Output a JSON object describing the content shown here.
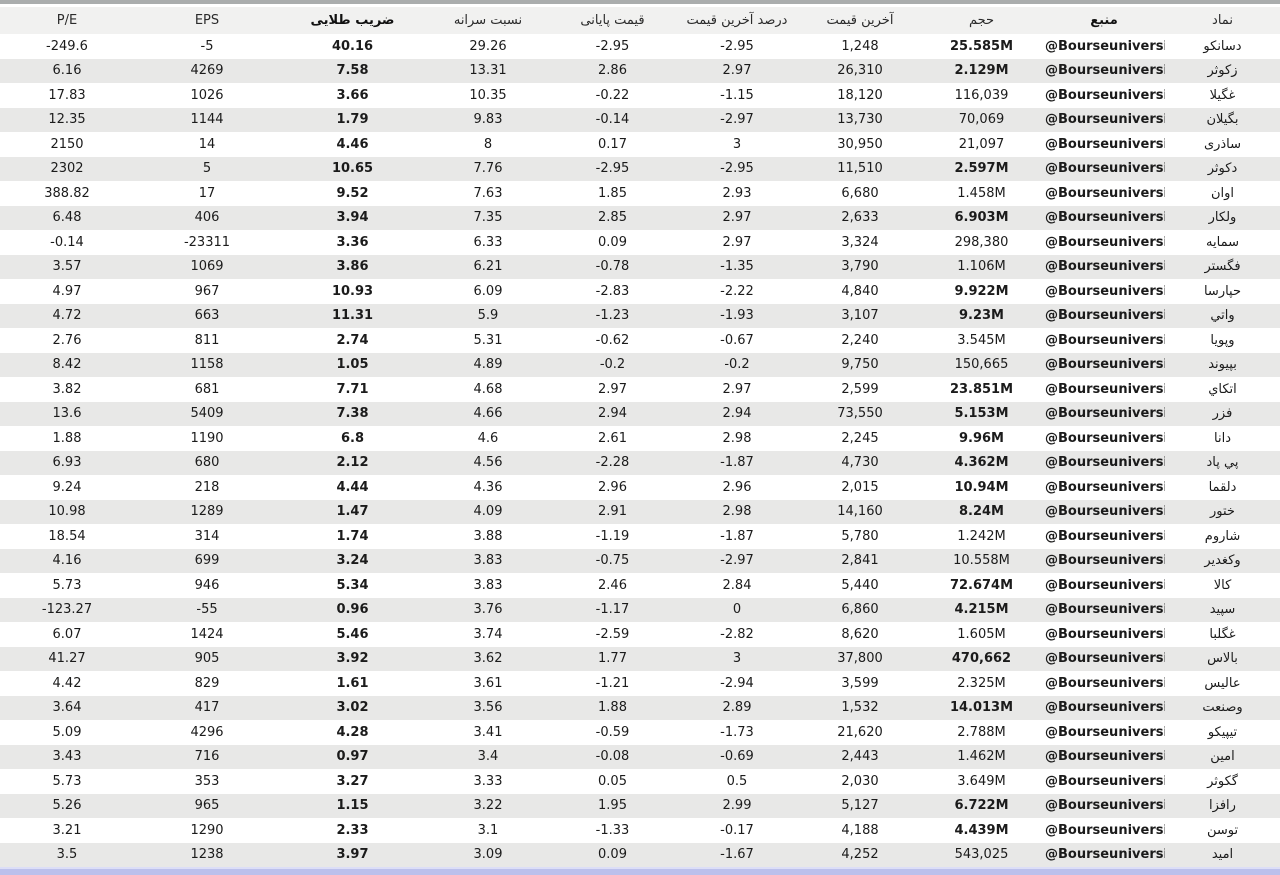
{
  "source_handle": "@Bourseuniversi",
  "colors": {
    "positive": "#339933",
    "negative": "#dc3b3b",
    "neutral": "#1b1b1b",
    "golden_ratio_text": "#15159a",
    "source_text": "#15159a",
    "header_bg": "#f1f1f0",
    "row_alt_bg": "#e8e8e7",
    "bottom_scrollbar": "#bcc0ec"
  },
  "table": {
    "columns": [
      {
        "key": "symbol",
        "label": "نماد",
        "style": "symbol",
        "bold_header": false
      },
      {
        "key": "source",
        "label": "منبع",
        "style": "source",
        "bold_header": true
      },
      {
        "key": "volume",
        "label": "حجم",
        "style": "volume",
        "bold_header": false
      },
      {
        "key": "last_price",
        "label": "آخرین قیمت",
        "style": "plain",
        "bold_header": false
      },
      {
        "key": "last_price_pct",
        "label": "درصد آخرین قیمت",
        "style": "signed",
        "bold_header": false
      },
      {
        "key": "close_price_pct",
        "label": "قیمت پایانی",
        "style": "signed",
        "bold_header": false
      },
      {
        "key": "per_capita_ratio",
        "label": "نسبت سرانه",
        "style": "plain",
        "bold_header": false
      },
      {
        "key": "golden_ratio",
        "label": "ضریب طلایی",
        "style": "golden",
        "bold_header": true
      },
      {
        "key": "eps",
        "label": "EPS",
        "style": "plain",
        "bold_header": false
      },
      {
        "key": "pe",
        "label": "P/E",
        "style": "plain",
        "bold_header": false
      }
    ],
    "rows": [
      {
        "symbol": "دسانکو",
        "source": "@Bourseuniversi",
        "volume": "25.585M",
        "volume_bold": true,
        "last_price": "1,248",
        "last_price_pct": "-2.95",
        "close_price_pct": "-2.95",
        "per_capita_ratio": "29.26",
        "golden_ratio": "40.16",
        "eps": "-5",
        "pe": "-249.6"
      },
      {
        "symbol": "زکوثر",
        "source": "@Bourseuniversi",
        "volume": "2.129M",
        "volume_bold": true,
        "last_price": "26,310",
        "last_price_pct": "2.97",
        "close_price_pct": "2.86",
        "per_capita_ratio": "13.31",
        "golden_ratio": "7.58",
        "eps": "4269",
        "pe": "6.16"
      },
      {
        "symbol": "غگیلا",
        "source": "@Bourseuniversi",
        "volume": "116,039",
        "volume_bold": false,
        "last_price": "18,120",
        "last_price_pct": "-1.15",
        "close_price_pct": "-0.22",
        "per_capita_ratio": "10.35",
        "golden_ratio": "3.66",
        "eps": "1026",
        "pe": "17.83"
      },
      {
        "symbol": "بگیلان",
        "source": "@Bourseuniversi",
        "volume": "70,069",
        "volume_bold": false,
        "last_price": "13,730",
        "last_price_pct": "-2.97",
        "close_price_pct": "-0.14",
        "per_capita_ratio": "9.83",
        "golden_ratio": "1.79",
        "eps": "1144",
        "pe": "12.35"
      },
      {
        "symbol": "ساذری",
        "source": "@Bourseuniversi",
        "volume": "21,097",
        "volume_bold": false,
        "last_price": "30,950",
        "last_price_pct": "3",
        "close_price_pct": "0.17",
        "per_capita_ratio": "8",
        "golden_ratio": "4.46",
        "eps": "14",
        "pe": "2150"
      },
      {
        "symbol": "دکوثر",
        "source": "@Bourseuniversi",
        "volume": "2.597M",
        "volume_bold": true,
        "last_price": "11,510",
        "last_price_pct": "-2.95",
        "close_price_pct": "-2.95",
        "per_capita_ratio": "7.76",
        "golden_ratio": "10.65",
        "eps": "5",
        "pe": "2302"
      },
      {
        "symbol": "اوان",
        "source": "@Bourseuniversi",
        "volume": "1.458M",
        "volume_bold": false,
        "last_price": "6,680",
        "last_price_pct": "2.93",
        "close_price_pct": "1.85",
        "per_capita_ratio": "7.63",
        "golden_ratio": "9.52",
        "eps": "17",
        "pe": "388.82"
      },
      {
        "symbol": "ولکار",
        "source": "@Bourseuniversi",
        "volume": "6.903M",
        "volume_bold": true,
        "last_price": "2,633",
        "last_price_pct": "2.97",
        "close_price_pct": "2.85",
        "per_capita_ratio": "7.35",
        "golden_ratio": "3.94",
        "eps": "406",
        "pe": "6.48"
      },
      {
        "symbol": "سمایه",
        "source": "@Bourseuniversi",
        "volume": "298,380",
        "volume_bold": false,
        "last_price": "3,324",
        "last_price_pct": "2.97",
        "close_price_pct": "0.09",
        "per_capita_ratio": "6.33",
        "golden_ratio": "3.36",
        "eps": "-23311",
        "pe": "-0.14"
      },
      {
        "symbol": "فگستر",
        "source": "@Bourseuniversi",
        "volume": "1.106M",
        "volume_bold": false,
        "last_price": "3,790",
        "last_price_pct": "-1.35",
        "close_price_pct": "-0.78",
        "per_capita_ratio": "6.21",
        "golden_ratio": "3.86",
        "eps": "1069",
        "pe": "3.57"
      },
      {
        "symbol": "حپارسا",
        "source": "@Bourseuniversi",
        "volume": "9.922M",
        "volume_bold": true,
        "last_price": "4,840",
        "last_price_pct": "-2.22",
        "close_price_pct": "-2.83",
        "per_capita_ratio": "6.09",
        "golden_ratio": "10.93",
        "eps": "967",
        "pe": "4.97"
      },
      {
        "symbol": "واتي",
        "source": "@Bourseuniversi",
        "volume": "9.23M",
        "volume_bold": true,
        "last_price": "3,107",
        "last_price_pct": "-1.93",
        "close_price_pct": "-1.23",
        "per_capita_ratio": "5.9",
        "golden_ratio": "11.31",
        "eps": "663",
        "pe": "4.72"
      },
      {
        "symbol": "وپویا",
        "source": "@Bourseuniversi",
        "volume": "3.545M",
        "volume_bold": false,
        "last_price": "2,240",
        "last_price_pct": "-0.67",
        "close_price_pct": "-0.62",
        "per_capita_ratio": "5.31",
        "golden_ratio": "2.74",
        "eps": "811",
        "pe": "2.76"
      },
      {
        "symbol": "بپیوند",
        "source": "@Bourseuniversi",
        "volume": "150,665",
        "volume_bold": false,
        "last_price": "9,750",
        "last_price_pct": "-0.2",
        "close_price_pct": "-0.2",
        "per_capita_ratio": "4.89",
        "golden_ratio": "1.05",
        "eps": "1158",
        "pe": "8.42"
      },
      {
        "symbol": "اتکاي",
        "source": "@Bourseuniversi",
        "volume": "23.851M",
        "volume_bold": true,
        "last_price": "2,599",
        "last_price_pct": "2.97",
        "close_price_pct": "2.97",
        "per_capita_ratio": "4.68",
        "golden_ratio": "7.71",
        "eps": "681",
        "pe": "3.82"
      },
      {
        "symbol": "فزر",
        "source": "@Bourseuniversi",
        "volume": "5.153M",
        "volume_bold": true,
        "last_price": "73,550",
        "last_price_pct": "2.94",
        "close_price_pct": "2.94",
        "per_capita_ratio": "4.66",
        "golden_ratio": "7.38",
        "eps": "5409",
        "pe": "13.6"
      },
      {
        "symbol": "دانا",
        "source": "@Bourseuniversi",
        "volume": "9.96M",
        "volume_bold": true,
        "last_price": "2,245",
        "last_price_pct": "2.98",
        "close_price_pct": "2.61",
        "per_capita_ratio": "4.6",
        "golden_ratio": "6.8",
        "eps": "1190",
        "pe": "1.88"
      },
      {
        "symbol": "پي پاد",
        "source": "@Bourseuniversi",
        "volume": "4.362M",
        "volume_bold": true,
        "last_price": "4,730",
        "last_price_pct": "-1.87",
        "close_price_pct": "-2.28",
        "per_capita_ratio": "4.56",
        "golden_ratio": "2.12",
        "eps": "680",
        "pe": "6.93"
      },
      {
        "symbol": "دلقما",
        "source": "@Bourseuniversi",
        "volume": "10.94M",
        "volume_bold": true,
        "last_price": "2,015",
        "last_price_pct": "2.96",
        "close_price_pct": "2.96",
        "per_capita_ratio": "4.36",
        "golden_ratio": "4.44",
        "eps": "218",
        "pe": "9.24"
      },
      {
        "symbol": "ختور",
        "source": "@Bourseuniversi",
        "volume": "8.24M",
        "volume_bold": true,
        "last_price": "14,160",
        "last_price_pct": "2.98",
        "close_price_pct": "2.91",
        "per_capita_ratio": "4.09",
        "golden_ratio": "1.47",
        "eps": "1289",
        "pe": "10.98"
      },
      {
        "symbol": "شاروم",
        "source": "@Bourseuniversi",
        "volume": "1.242M",
        "volume_bold": false,
        "last_price": "5,780",
        "last_price_pct": "-1.87",
        "close_price_pct": "-1.19",
        "per_capita_ratio": "3.88",
        "golden_ratio": "1.74",
        "eps": "314",
        "pe": "18.54"
      },
      {
        "symbol": "وکغدیر",
        "source": "@Bourseuniversi",
        "volume": "10.558M",
        "volume_bold": false,
        "last_price": "2,841",
        "last_price_pct": "-2.97",
        "close_price_pct": "-0.75",
        "per_capita_ratio": "3.83",
        "golden_ratio": "3.24",
        "eps": "699",
        "pe": "4.16"
      },
      {
        "symbol": "کالا",
        "source": "@Bourseuniversi",
        "volume": "72.674M",
        "volume_bold": true,
        "last_price": "5,440",
        "last_price_pct": "2.84",
        "close_price_pct": "2.46",
        "per_capita_ratio": "3.83",
        "golden_ratio": "5.34",
        "eps": "946",
        "pe": "5.73"
      },
      {
        "symbol": "سپید",
        "source": "@Bourseuniversi",
        "volume": "4.215M",
        "volume_bold": true,
        "last_price": "6,860",
        "last_price_pct": "0",
        "close_price_pct": "-1.17",
        "per_capita_ratio": "3.76",
        "golden_ratio": "0.96",
        "eps": "-55",
        "pe": "-123.27"
      },
      {
        "symbol": "غگلبا",
        "source": "@Bourseuniversi",
        "volume": "1.605M",
        "volume_bold": false,
        "last_price": "8,620",
        "last_price_pct": "-2.82",
        "close_price_pct": "-2.59",
        "per_capita_ratio": "3.74",
        "golden_ratio": "5.46",
        "eps": "1424",
        "pe": "6.07"
      },
      {
        "symbol": "بالاس",
        "source": "@Bourseuniversi",
        "volume": "470,662",
        "volume_bold": true,
        "last_price": "37,800",
        "last_price_pct": "3",
        "close_price_pct": "1.77",
        "per_capita_ratio": "3.62",
        "golden_ratio": "3.92",
        "eps": "905",
        "pe": "41.27"
      },
      {
        "symbol": "عالیس",
        "source": "@Bourseuniversi",
        "volume": "2.325M",
        "volume_bold": false,
        "last_price": "3,599",
        "last_price_pct": "-2.94",
        "close_price_pct": "-1.21",
        "per_capita_ratio": "3.61",
        "golden_ratio": "1.61",
        "eps": "829",
        "pe": "4.42"
      },
      {
        "symbol": "وصنعت",
        "source": "@Bourseuniversi",
        "volume": "14.013M",
        "volume_bold": true,
        "last_price": "1,532",
        "last_price_pct": "2.89",
        "close_price_pct": "1.88",
        "per_capita_ratio": "3.56",
        "golden_ratio": "3.02",
        "eps": "417",
        "pe": "3.64"
      },
      {
        "symbol": "تیپیکو",
        "source": "@Bourseuniversi",
        "volume": "2.788M",
        "volume_bold": false,
        "last_price": "21,620",
        "last_price_pct": "-1.73",
        "close_price_pct": "-0.59",
        "per_capita_ratio": "3.41",
        "golden_ratio": "4.28",
        "eps": "4296",
        "pe": "5.09"
      },
      {
        "symbol": "امین",
        "source": "@Bourseuniversi",
        "volume": "1.462M",
        "volume_bold": false,
        "last_price": "2,443",
        "last_price_pct": "-0.69",
        "close_price_pct": "-0.08",
        "per_capita_ratio": "3.4",
        "golden_ratio": "0.97",
        "eps": "716",
        "pe": "3.43"
      },
      {
        "symbol": "گکوثر",
        "source": "@Bourseuniversi",
        "volume": "3.649M",
        "volume_bold": false,
        "last_price": "2,030",
        "last_price_pct": "0.5",
        "close_price_pct": "0.05",
        "per_capita_ratio": "3.33",
        "golden_ratio": "3.27",
        "eps": "353",
        "pe": "5.73"
      },
      {
        "symbol": "رافزا",
        "source": "@Bourseuniversi",
        "volume": "6.722M",
        "volume_bold": true,
        "last_price": "5,127",
        "last_price_pct": "2.99",
        "close_price_pct": "1.95",
        "per_capita_ratio": "3.22",
        "golden_ratio": "1.15",
        "eps": "965",
        "pe": "5.26"
      },
      {
        "symbol": "توسن",
        "source": "@Bourseuniversi",
        "volume": "4.439M",
        "volume_bold": true,
        "last_price": "4,188",
        "last_price_pct": "-0.17",
        "close_price_pct": "-1.33",
        "per_capita_ratio": "3.1",
        "golden_ratio": "2.33",
        "eps": "1290",
        "pe": "3.21"
      },
      {
        "symbol": "امید",
        "source": "@Bourseuniversi",
        "volume": "543,025",
        "volume_bold": false,
        "last_price": "4,252",
        "last_price_pct": "-1.67",
        "close_price_pct": "0.09",
        "per_capita_ratio": "3.09",
        "golden_ratio": "3.97",
        "eps": "1238",
        "pe": "3.5"
      }
    ]
  }
}
